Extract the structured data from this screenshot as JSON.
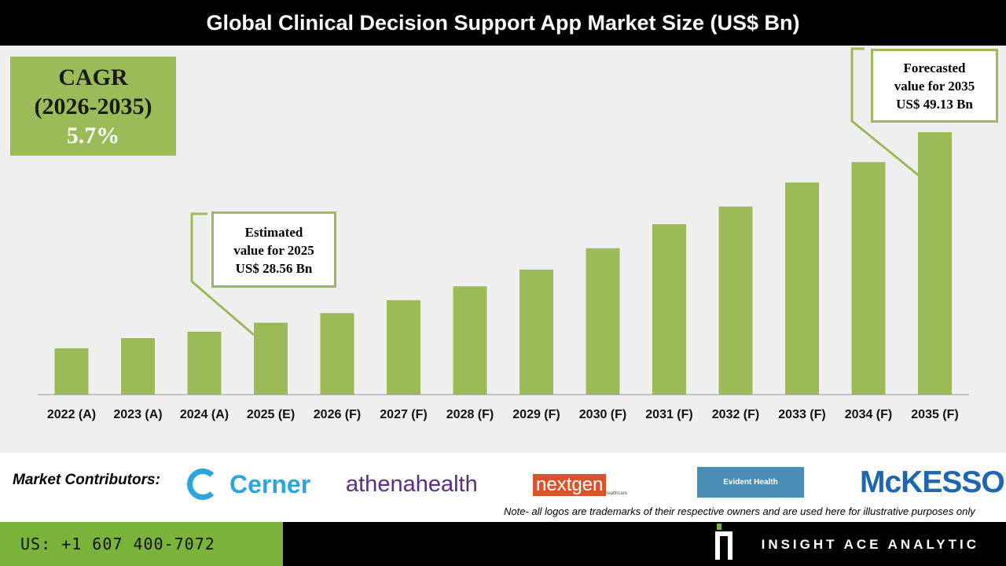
{
  "title": "Global Clinical Decision Support App Market Size (US$ Bn)",
  "cagr": {
    "label": "CAGR",
    "period": "(2026-2035)",
    "value": "5.7%"
  },
  "callouts": {
    "estimated": [
      "Estimated",
      "value for 2025",
      "US$ 28.56 Bn"
    ],
    "forecasted": [
      "Forecasted",
      "value for 2035",
      "US$ 49.13 Bn"
    ]
  },
  "chart_data": {
    "type": "bar",
    "title": "Global Clinical Decision Support App Market Size (US$ Bn)",
    "categories": [
      "2022 (A)",
      "2023 (A)",
      "2024 (A)",
      "2025 (E)",
      "2026 (F)",
      "2027 (F)",
      "2028 (F)",
      "2029 (F)",
      "2030 (F)",
      "2031 (F)",
      "2032 (F)",
      "2033 (F)",
      "2034 (F)",
      "2035 (F)"
    ],
    "values": [
      25.8,
      26.9,
      27.6,
      28.56,
      29.6,
      31.0,
      32.5,
      34.3,
      36.6,
      39.2,
      41.1,
      43.7,
      45.9,
      49.13
    ],
    "ylim": [
      20.8,
      50.5
    ],
    "grid": false,
    "bar_color": "#9bbb59"
  },
  "contributors": {
    "label": "Market Contributors:",
    "logos": [
      "Cerner",
      "athenahealth",
      "nextgen",
      "healthcare",
      "Evident Health",
      "McKESSON"
    ]
  },
  "note": "Note- all logos are trademarks of their respective owners and are used here for illustrative purposes only",
  "footer": {
    "phone": "US: +1 607 400-7072",
    "brand": "INSIGHT ACE ANALYTIC"
  }
}
